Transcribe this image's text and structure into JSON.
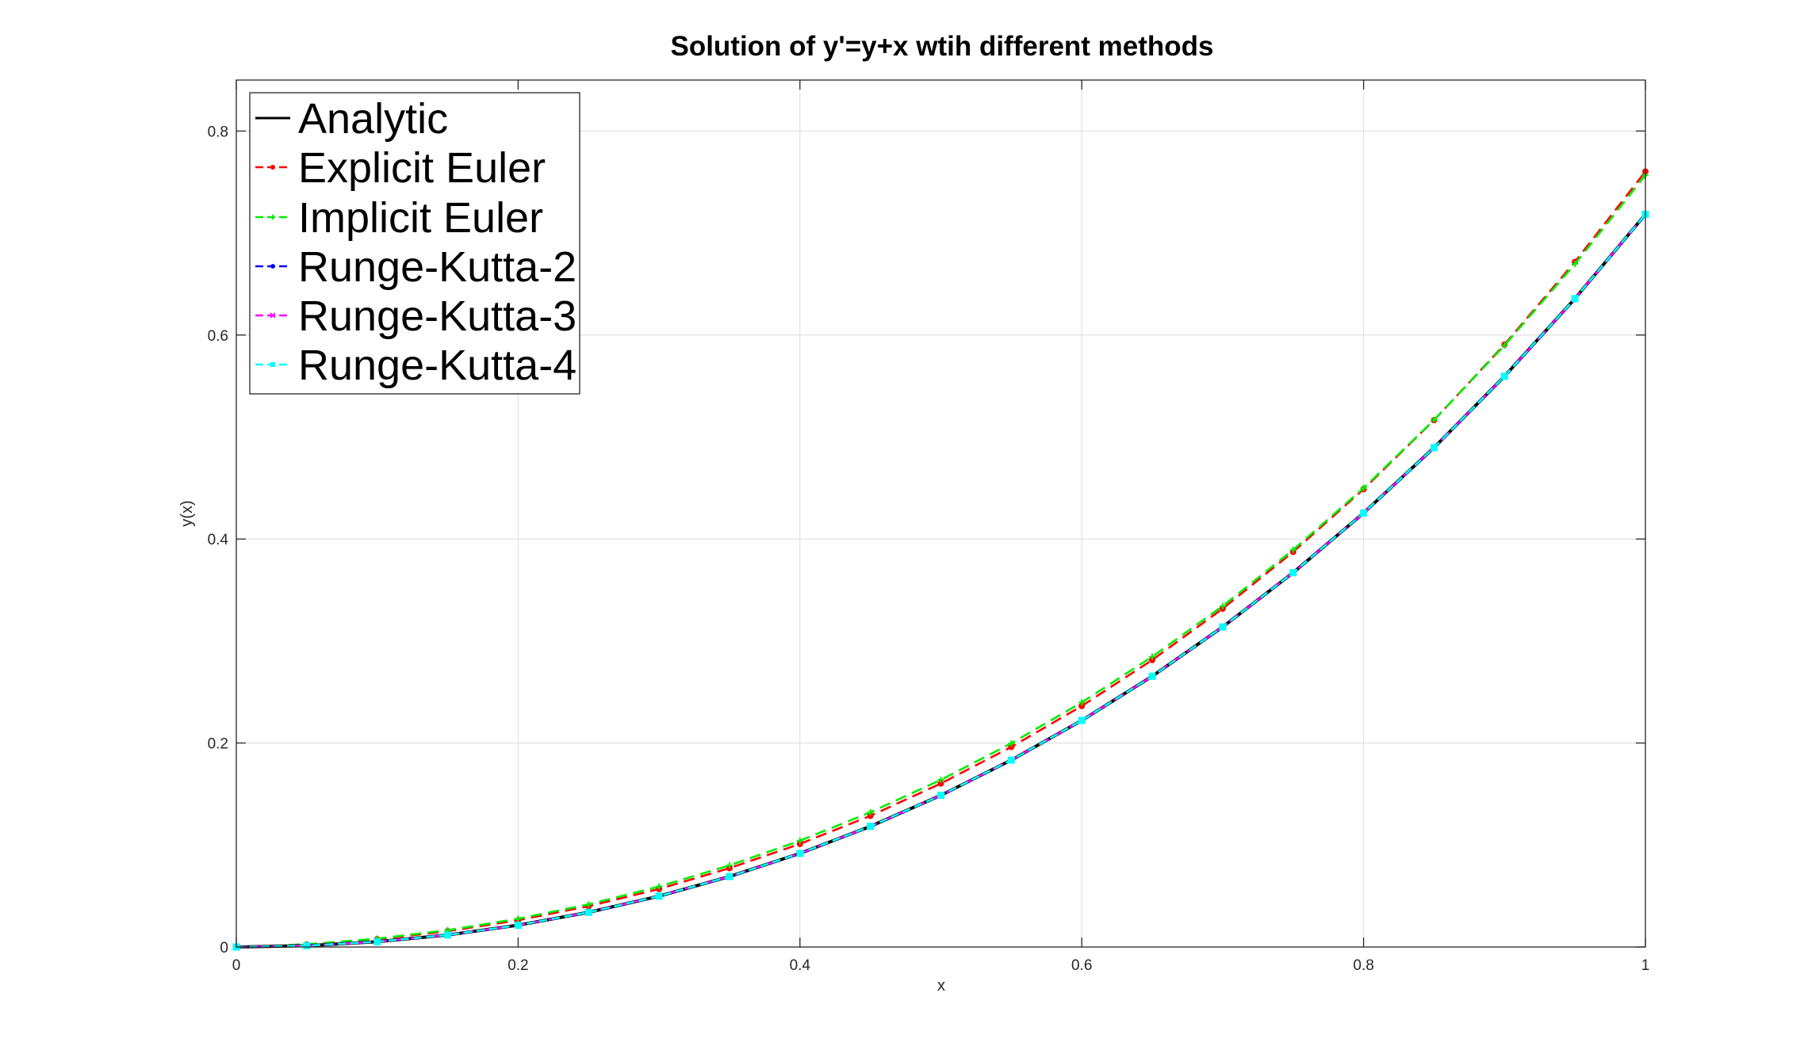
{
  "chart_data": {
    "type": "line",
    "title": "Solution of y'=y+x wtih different methods",
    "xlabel": "x",
    "ylabel": "y(x)",
    "xlim": [
      0,
      1
    ],
    "ylim": [
      0,
      0.85
    ],
    "xticks": [
      0,
      0.2,
      0.4,
      0.6,
      0.8,
      1
    ],
    "yticks": [
      0,
      0.2,
      0.4,
      0.6,
      0.8
    ],
    "xtick_labels": [
      "0",
      "0.2",
      "0.4",
      "0.6",
      "0.8",
      "1"
    ],
    "ytick_labels": [
      "0",
      "0.2",
      "0.4",
      "0.6",
      "0.8"
    ],
    "grid": true,
    "legend_position": "top-left",
    "x": [
      0,
      0.05,
      0.1,
      0.15,
      0.2,
      0.25,
      0.3,
      0.35,
      0.4,
      0.45,
      0.5,
      0.55,
      0.6,
      0.65,
      0.7,
      0.75,
      0.8,
      0.85,
      0.9,
      0.95,
      1.0
    ],
    "series": [
      {
        "name": "Analytic",
        "color": "#000000",
        "style": "solid",
        "marker": "none",
        "values": [
          0,
          0.0013,
          0.0052,
          0.0118,
          0.0214,
          0.034,
          0.0499,
          0.0691,
          0.0918,
          0.1183,
          0.1487,
          0.1833,
          0.2221,
          0.2655,
          0.3138,
          0.367,
          0.4255,
          0.4896,
          0.5596,
          0.6357,
          0.7183
        ]
      },
      {
        "name": "Explicit Euler",
        "color": "#ff0000",
        "style": "dashed",
        "marker": "dot",
        "values": [
          0,
          0.0025,
          0.0076,
          0.0155,
          0.0263,
          0.04,
          0.0569,
          0.0773,
          0.1011,
          0.1286,
          0.1603,
          0.1961,
          0.2363,
          0.2814,
          0.3317,
          0.3874,
          0.4489,
          0.5165,
          0.5907,
          0.6717,
          0.7603
        ]
      },
      {
        "name": "Implicit Euler",
        "color": "#00ee00",
        "style": "dashed",
        "marker": "plus",
        "values": [
          0,
          0.0026,
          0.0082,
          0.0165,
          0.0277,
          0.0418,
          0.0593,
          0.08,
          0.1042,
          0.1321,
          0.1639,
          0.1997,
          0.2398,
          0.2846,
          0.3343,
          0.3894,
          0.45,
          0.5167,
          0.5898,
          0.6696,
          0.7566
        ]
      },
      {
        "name": "Runge-Kutta-2",
        "color": "#0000ff",
        "style": "dashed",
        "marker": "star",
        "values": [
          0,
          0.0013,
          0.0052,
          0.0118,
          0.0214,
          0.034,
          0.0499,
          0.0691,
          0.0918,
          0.1182,
          0.1486,
          0.1831,
          0.2219,
          0.2653,
          0.3136,
          0.3668,
          0.4252,
          0.4893,
          0.5592,
          0.6353,
          0.7178
        ]
      },
      {
        "name": "Runge-Kutta-3",
        "color": "#ff00ff",
        "style": "dashed",
        "marker": "x",
        "values": [
          0,
          0.0013,
          0.0052,
          0.0118,
          0.0214,
          0.034,
          0.0499,
          0.0691,
          0.0918,
          0.1183,
          0.1487,
          0.1833,
          0.2221,
          0.2655,
          0.3138,
          0.367,
          0.4255,
          0.4896,
          0.5596,
          0.6357,
          0.7183
        ]
      },
      {
        "name": "Runge-Kutta-4",
        "color": "#00ffff",
        "style": "dashed",
        "marker": "square",
        "values": [
          0,
          0.0013,
          0.0052,
          0.0118,
          0.0214,
          0.034,
          0.0499,
          0.0691,
          0.0918,
          0.1183,
          0.1487,
          0.1833,
          0.2221,
          0.2655,
          0.3138,
          0.367,
          0.4255,
          0.4896,
          0.5596,
          0.6357,
          0.7183
        ]
      }
    ]
  }
}
